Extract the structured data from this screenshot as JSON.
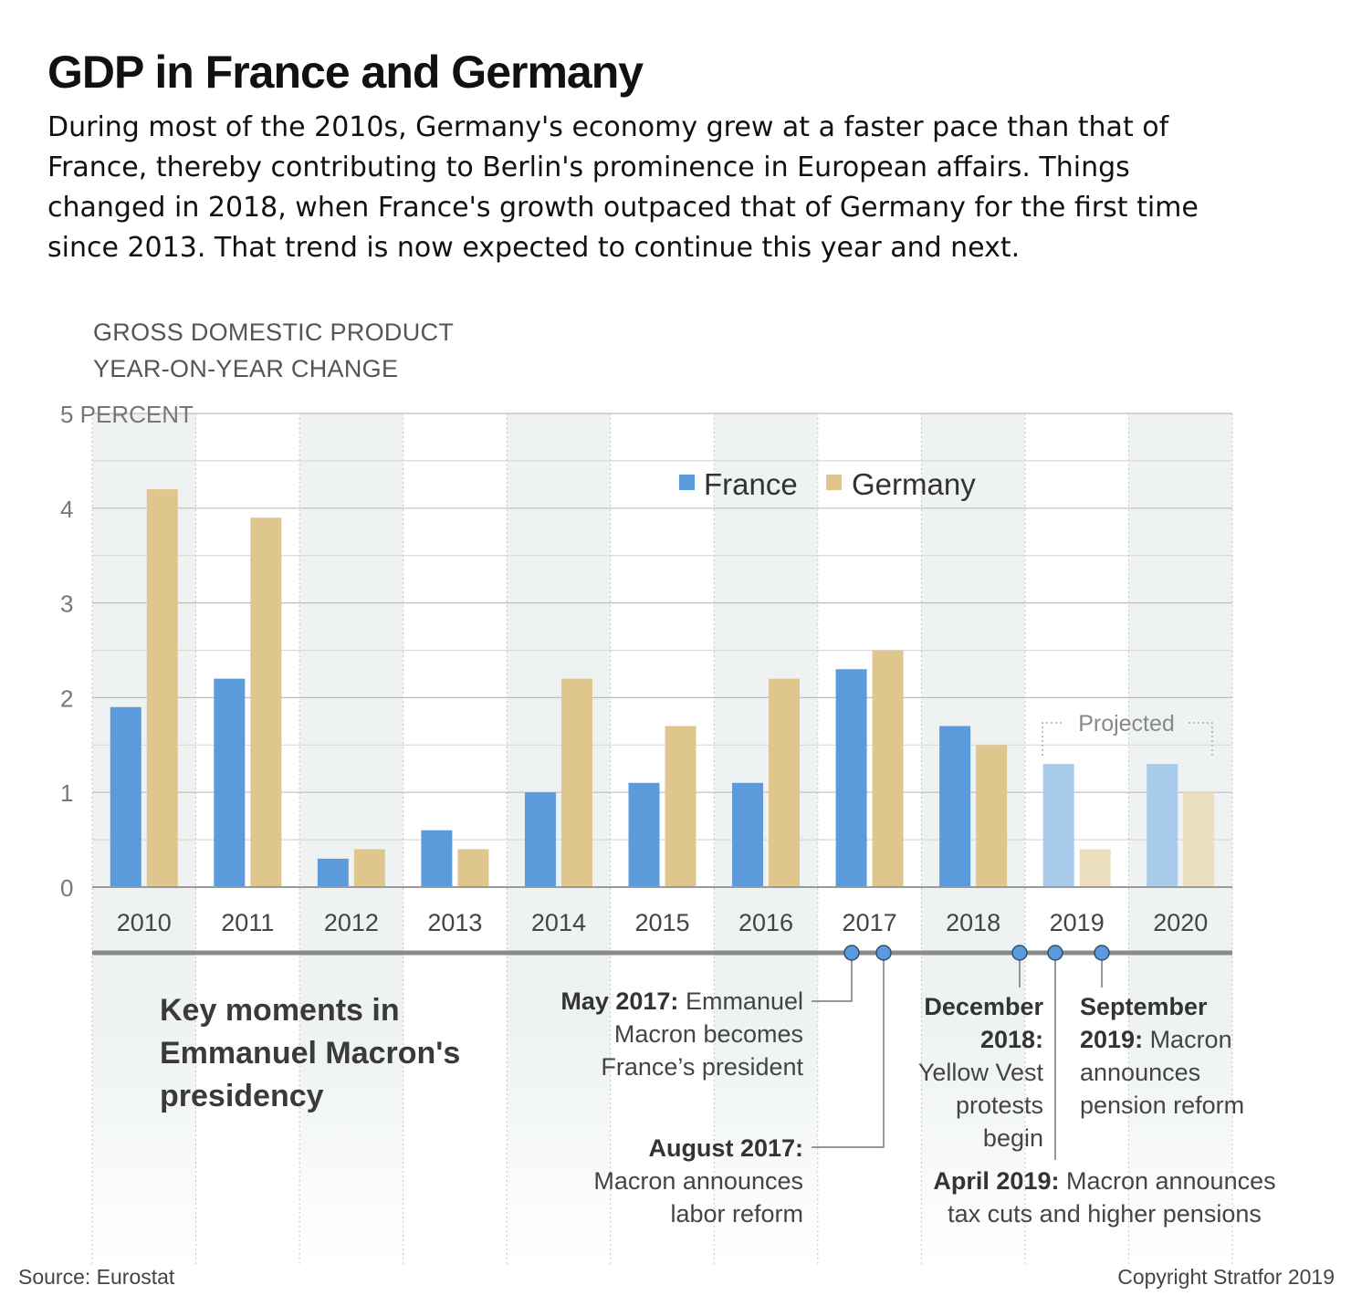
{
  "header": {
    "title": "GDP in France and Germany",
    "subtitle": "During most of the 2010s, Germany's economy grew at a faster pace than that of France, thereby contributing to Berlin's prominence in European affairs. Things changed in 2018, when France's growth outpaced that of Germany for the first time since 2013. That trend is now expected to continue this year and next."
  },
  "axis_title": {
    "line1": "GROSS DOMESTIC PRODUCT",
    "line2": "YEAR-ON-YEAR CHANGE"
  },
  "chart_data": {
    "type": "bar",
    "categories": [
      "2010",
      "2011",
      "2012",
      "2013",
      "2014",
      "2015",
      "2016",
      "2017",
      "2018",
      "2019",
      "2020"
    ],
    "series": [
      {
        "name": "France",
        "color": "#5b9bdb",
        "projected_color": "#a9cbeb",
        "values": [
          1.9,
          2.2,
          0.3,
          0.6,
          1.0,
          1.1,
          1.1,
          2.3,
          1.7,
          1.3,
          1.3
        ]
      },
      {
        "name": "Germany",
        "color": "#dfc68d",
        "projected_color": "#ecdfbf",
        "values": [
          4.2,
          3.9,
          0.4,
          0.4,
          2.2,
          1.7,
          2.2,
          2.5,
          1.5,
          0.4,
          1.0
        ]
      }
    ],
    "projected_categories": [
      "2019",
      "2020"
    ],
    "projected_label": "Projected",
    "ylim": [
      0,
      5
    ],
    "yticks": [
      {
        "value": 0,
        "label": "0"
      },
      {
        "value": 1,
        "label": "1"
      },
      {
        "value": 2,
        "label": "2"
      },
      {
        "value": 3,
        "label": "3"
      },
      {
        "value": 4,
        "label": "4"
      },
      {
        "value": 5,
        "label": "5 PERCENT"
      }
    ],
    "grid": true,
    "legend_position": "top-center"
  },
  "timeline": {
    "heading": [
      "Key moments in",
      "Emmanuel Macron's",
      "presidency"
    ],
    "events": [
      {
        "id": "may2017",
        "bold": [
          "May 2017:"
        ],
        "text": [
          "Emmanuel",
          "Macron becomes",
          "France’s president"
        ]
      },
      {
        "id": "aug2017",
        "bold": [
          "August 2017:"
        ],
        "text": [
          "Macron announces",
          "labor reform"
        ]
      },
      {
        "id": "dec2018",
        "bold": [
          "December",
          "2018:"
        ],
        "text": [
          "Yellow Vest",
          "protests",
          "begin"
        ]
      },
      {
        "id": "apr2019",
        "bold": [
          "April 2019:"
        ],
        "text": [
          "Macron announces",
          "tax cuts and higher pensions"
        ]
      },
      {
        "id": "sep2019",
        "bold": [
          "September",
          "2019:"
        ],
        "text": [
          "Macron",
          "announces",
          "pension reform"
        ]
      }
    ]
  },
  "footer": {
    "source": "Source: Eurostat",
    "copyright": "Copyright Stratfor 2019"
  },
  "colors": {
    "band": "#eef2f2",
    "timeline_line": "#8a8a8a",
    "dot_fill": "#5b9bdb"
  }
}
